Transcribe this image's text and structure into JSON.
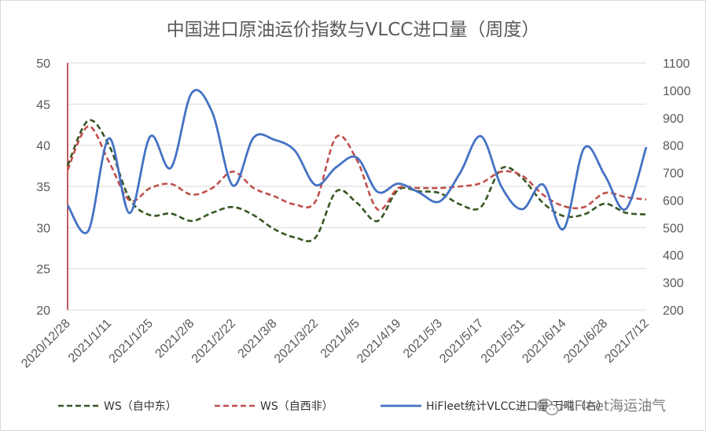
{
  "chart_data": {
    "type": "line",
    "title": "中国进口原油运价指数与VLCC进口量（周度）",
    "xlabel": "",
    "ylabel": "",
    "x": [
      "2020/12/28",
      "2021/1/4",
      "2021/1/11",
      "2021/1/18",
      "2021/1/25",
      "2021/2/1",
      "2021/2/8",
      "2021/2/15",
      "2021/2/22",
      "2021/3/1",
      "2021/3/8",
      "2021/3/15",
      "2021/3/22",
      "2021/3/29",
      "2021/4/5",
      "2021/4/12",
      "2021/4/19",
      "2021/4/26",
      "2021/5/3",
      "2021/5/10",
      "2021/5/17",
      "2021/5/24",
      "2021/5/31",
      "2021/6/7",
      "2021/6/14",
      "2021/6/21",
      "2021/6/28",
      "2021/7/5",
      "2021/7/12"
    ],
    "x_tick_labels": [
      "2020/12/28",
      "2021/1/11",
      "2021/1/25",
      "2021/2/8",
      "2021/2/22",
      "2021/3/8",
      "2021/3/22",
      "2021/4/5",
      "2021/4/19",
      "2021/5/3",
      "2021/5/17",
      "2021/5/31",
      "2021/6/14",
      "2021/6/28",
      "2021/7/12"
    ],
    "y_left": {
      "ylim": [
        20,
        50
      ],
      "ticks": [
        20,
        25,
        30,
        35,
        40,
        45,
        50
      ]
    },
    "y_right": {
      "ylim": [
        200,
        1100
      ],
      "ticks": [
        200,
        300,
        400,
        500,
        600,
        700,
        800,
        900,
        1000,
        1100
      ]
    },
    "grid": true,
    "legend_position": "bottom",
    "series": [
      {
        "name": "WS（自中东）",
        "axis": "left",
        "color": "#375623",
        "style": "dashed",
        "values": [
          37.5,
          43.0,
          40.0,
          33.5,
          31.5,
          31.7,
          30.8,
          31.8,
          32.5,
          31.5,
          29.8,
          28.8,
          28.8,
          34.4,
          33.0,
          30.8,
          34.6,
          34.4,
          34.2,
          32.8,
          32.5,
          37.2,
          36.0,
          33.0,
          31.4,
          31.6,
          32.9,
          31.8,
          31.6
        ]
      },
      {
        "name": "WS（自西非）",
        "axis": "left",
        "color": "#c0504d",
        "style": "dashed",
        "values": [
          37.0,
          42.3,
          38.0,
          33.3,
          34.8,
          35.3,
          34.0,
          34.8,
          36.8,
          34.8,
          33.8,
          32.8,
          33.2,
          41.0,
          38.2,
          32.2,
          34.8,
          34.8,
          34.8,
          35.0,
          35.4,
          36.8,
          36.3,
          34.0,
          32.6,
          32.5,
          34.2,
          33.7,
          33.4
        ]
      },
      {
        "name": "HiFleet统计VLCC进口量/万吨（右）",
        "axis": "right",
        "color": "#4472c4",
        "style": "solid",
        "values": [
          582,
          488,
          825,
          553,
          832,
          718,
          990,
          920,
          653,
          828,
          820,
          780,
          655,
          720,
          755,
          630,
          660,
          628,
          595,
          700,
          833,
          648,
          567,
          657,
          495,
          790,
          690,
          567,
          793
        ]
      }
    ]
  },
  "watermark_text": "HiFleet海运油气"
}
